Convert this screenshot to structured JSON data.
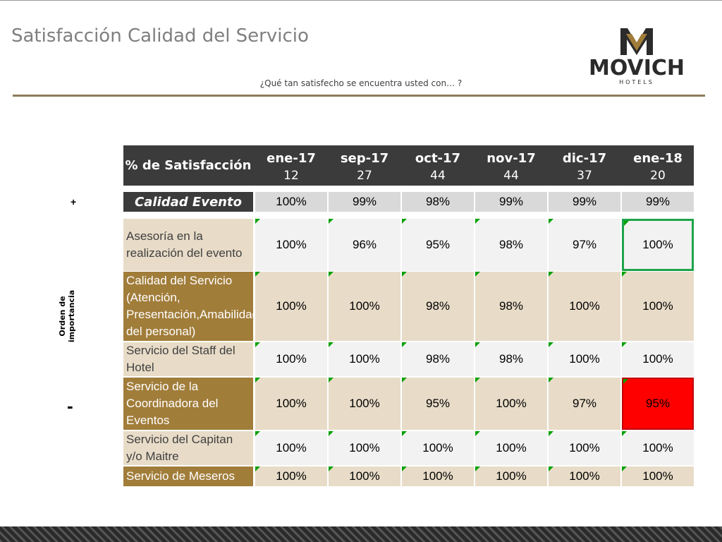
{
  "header": {
    "title": "Satisfacción Calidad del Servicio",
    "subtitle": "¿Qué tan satisfecho se encuentra usted con… ?",
    "logo_text": "MOVICH",
    "logo_sub": "HOTELS"
  },
  "side": {
    "plus": "+",
    "minus": "-",
    "label": "Orden de importancia"
  },
  "table": {
    "corner": "% de Satisfacción",
    "columns": [
      {
        "month": "ene-17",
        "n": "12"
      },
      {
        "month": "sep-17",
        "n": "27"
      },
      {
        "month": "oct-17",
        "n": "44"
      },
      {
        "month": "nov-17",
        "n": "44"
      },
      {
        "month": "dic-17",
        "n": "37"
      },
      {
        "month": "ene-18",
        "n": "20"
      }
    ],
    "summary": {
      "label": "Calidad Evento",
      "values": [
        "100%",
        "99%",
        "98%",
        "99%",
        "99%",
        "99%"
      ]
    },
    "rows": [
      {
        "label": "Asesoría en la realización del evento",
        "values": [
          "100%",
          "96%",
          "95%",
          "98%",
          "97%",
          "100%"
        ]
      },
      {
        "label": "Calidad del Servicio (Atención, Presentación,Amabilidad del personal)",
        "values": [
          "100%",
          "100%",
          "98%",
          "98%",
          "100%",
          "100%"
        ]
      },
      {
        "label": "Servicio del Staff del Hotel",
        "values": [
          "100%",
          "100%",
          "98%",
          "98%",
          "100%",
          "100%"
        ]
      },
      {
        "label": "Servicio de la Coordinadora del Eventos",
        "values": [
          "100%",
          "100%",
          "95%",
          "100%",
          "97%",
          "95%"
        ]
      },
      {
        "label": "Servicio del Capitan y/o Maitre",
        "values": [
          "100%",
          "100%",
          "100%",
          "100%",
          "100%",
          "100%"
        ]
      },
      {
        "label": "Servicio de Meseros",
        "values": [
          "100%",
          "100%",
          "100%",
          "100%",
          "100%",
          "100%"
        ]
      }
    ]
  },
  "colors": {
    "header_bg": "#3b3b3b",
    "label_light": "#e8dcc8",
    "label_dark": "#a17d3a",
    "highlight_green": "#1fa34a",
    "highlight_red": "#ff0000",
    "accent_rule": "#8d7c5a"
  }
}
